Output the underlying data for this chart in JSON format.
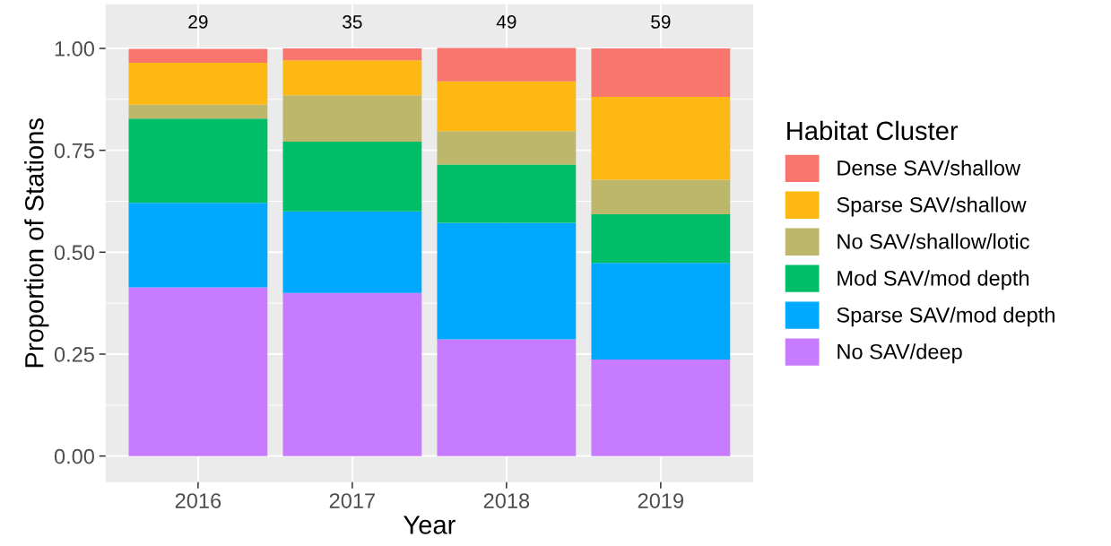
{
  "chart_data": {
    "type": "bar",
    "stacked": true,
    "xlabel": "Year",
    "ylabel": "Proportion of Stations",
    "legend_title": "Habitat Cluster",
    "categories": [
      "2016",
      "2017",
      "2018",
      "2019"
    ],
    "series": [
      {
        "name": "No SAV/deep",
        "color": "#c77cff",
        "values": [
          0.414,
          0.4,
          0.286,
          0.237
        ]
      },
      {
        "name": "Sparse SAV/mod depth",
        "color": "#00a9ff",
        "values": [
          0.207,
          0.2,
          0.286,
          0.237
        ]
      },
      {
        "name": "Mod SAV/mod depth",
        "color": "#00be67",
        "values": [
          0.207,
          0.171,
          0.143,
          0.119
        ]
      },
      {
        "name": "No SAV/shallow/lotic",
        "color": "#bdb76b",
        "values": [
          0.034,
          0.114,
          0.082,
          0.085
        ]
      },
      {
        "name": "Sparse SAV/shallow",
        "color": "#fdb813",
        "values": [
          0.103,
          0.086,
          0.122,
          0.203
        ]
      },
      {
        "name": "Dense SAV/shallow",
        "color": "#f8766d",
        "values": [
          0.034,
          0.029,
          0.082,
          0.119
        ]
      }
    ],
    "ylim": [
      -0.064,
      1.108
    ],
    "yticks": [
      {
        "value": 0,
        "label": "0.00"
      },
      {
        "value": 0.25,
        "label": "0.25"
      },
      {
        "value": 0.5,
        "label": "0.50"
      },
      {
        "value": 0.75,
        "label": "0.75"
      },
      {
        "value": 1,
        "label": "1.00"
      }
    ],
    "annotations": [
      "29",
      "35",
      "49",
      "59"
    ],
    "grid": true,
    "legend": "right"
  }
}
